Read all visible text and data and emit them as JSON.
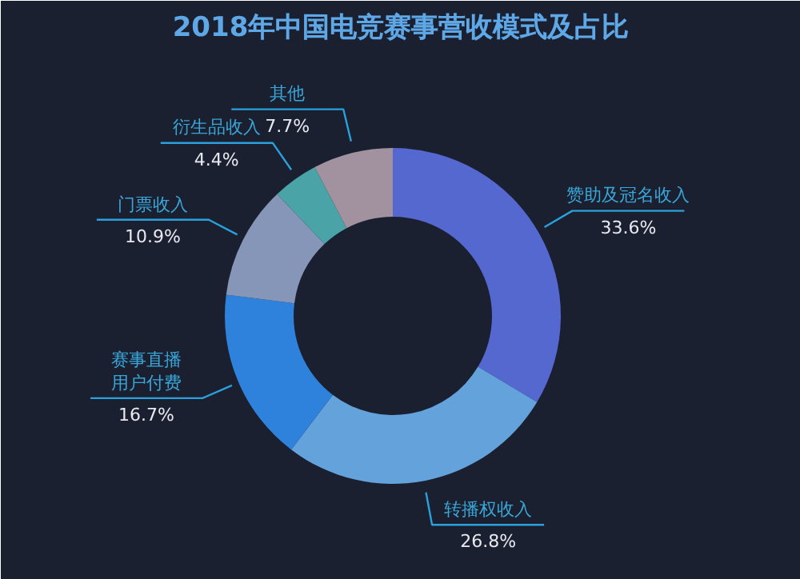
{
  "chart_data": {
    "type": "donut",
    "title": "2018年中国电竞赛事营收模式及占比",
    "categories": [
      "赞助及冠名收入",
      "转播权收入",
      "赛事直播用户付费",
      "门票收入",
      "衍生品收入",
      "其他"
    ],
    "values": [
      33.6,
      26.8,
      16.7,
      10.9,
      4.4,
      7.7
    ],
    "value_labels": [
      "33.6%",
      "26.8%",
      "16.7%",
      "10.9%",
      "4.4%",
      "7.7%"
    ],
    "colors": [
      "#5468d0",
      "#64a2dc",
      "#2f82dc",
      "#8696b8",
      "#4aa3a6",
      "#a2919f"
    ]
  }
}
